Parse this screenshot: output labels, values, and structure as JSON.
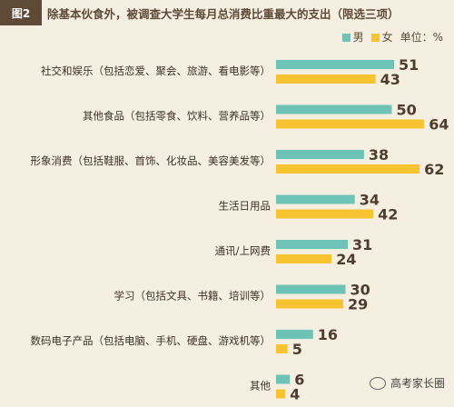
{
  "header": {
    "fig_no": "图2",
    "title": "除基本伙食外，被调查大学生每月总消费比重最大的支出（限选三项）"
  },
  "legend": {
    "male": "男",
    "female": "女",
    "unit": "单位：%"
  },
  "colors": {
    "male": "#6ec3b7",
    "female": "#f8c330",
    "text": "#5e4a37"
  },
  "watermark": {
    "text": "高考家长圈",
    "icon": "wechat-logo-icon"
  },
  "chart_data": {
    "type": "bar",
    "orientation": "horizontal",
    "categories": [
      "社交和娱乐（包括恋爱、聚会、旅游、看电影等）",
      "其他食品（包括零食、饮料、营养品等）",
      "形象消费（包括鞋服、首饰、化妆品、美容美发等）",
      "生活日用品",
      "通讯/上网费",
      "学习（包括文具、书籍、培训等）",
      "数码电子产品（包括电脑、手机、硬盘、游戏机等）",
      "其他"
    ],
    "series": [
      {
        "name": "男",
        "values": [
          51,
          50,
          38,
          34,
          31,
          30,
          16,
          6
        ]
      },
      {
        "name": "女",
        "values": [
          43,
          64,
          62,
          42,
          24,
          29,
          5,
          4
        ]
      }
    ],
    "unit": "%",
    "xlim": [
      0,
      64
    ],
    "grid": false,
    "legend_position": "top-right"
  }
}
